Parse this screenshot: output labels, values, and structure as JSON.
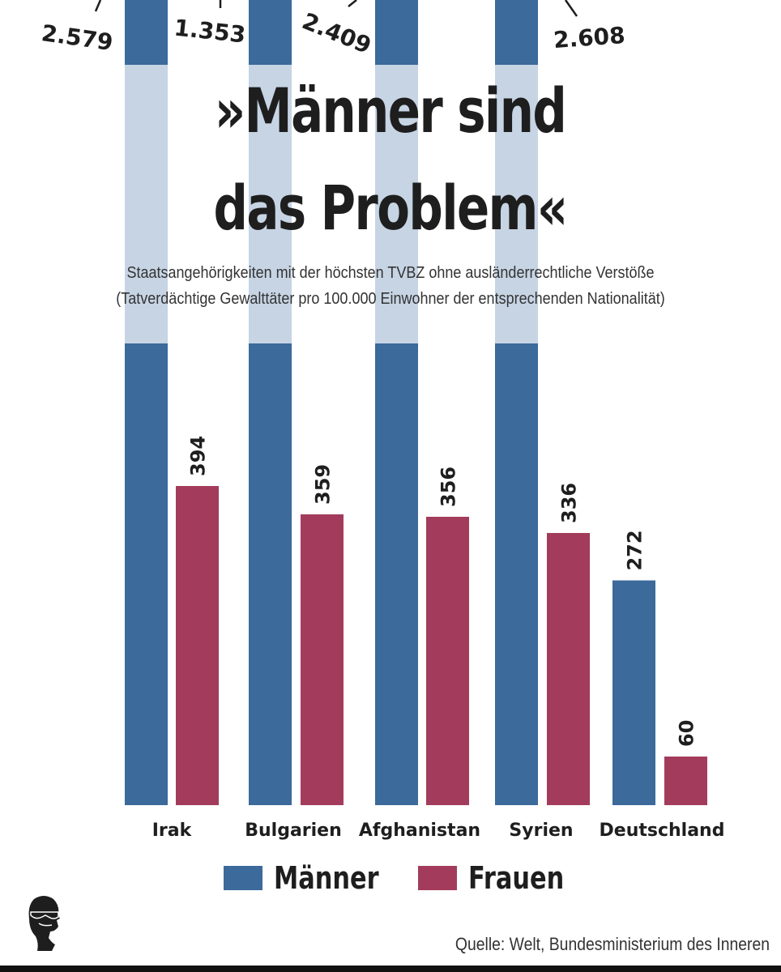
{
  "title_lines": [
    "»Männer sind",
    "das Problem«"
  ],
  "subtitle_lines": [
    "Staatsangehörigkeiten mit der höchsten TVBZ ohne ausländerrechtliche Verstöße",
    "(Tatverdächtige Gewalttäter pro 100.000 Einwohner der entsprechenden Nationalität)"
  ],
  "source": "Quelle: Welt, Bundesministerium des Inneren",
  "colors": {
    "maenner": "#3b6a9b",
    "frauen": "#a33c5c",
    "faded": "#c6d4e4",
    "text": "#1e1e1e"
  },
  "logo_icon": "silhouette-head-sunglasses-icon",
  "chart_data": {
    "type": "bar",
    "categories": [
      "Irak",
      "Bulgarien",
      "Afghanistan",
      "Syrien",
      "Deutschland"
    ],
    "series": [
      {
        "name": "Männer",
        "values": [
          2579,
          1353,
          2409,
          2608,
          272
        ],
        "labels": [
          "2.579",
          "1.353",
          "2.409",
          "2.608",
          "272"
        ]
      },
      {
        "name": "Frauen",
        "values": [
          394,
          359,
          356,
          336,
          60
        ],
        "labels": [
          "394",
          "359",
          "356",
          "336",
          "60"
        ]
      }
    ],
    "axis_break": "bars of Männer for Irak, Bulgarien, Afghanistan, Syrien are truncated above the title",
    "grid": false,
    "legend": "bottom-center"
  }
}
